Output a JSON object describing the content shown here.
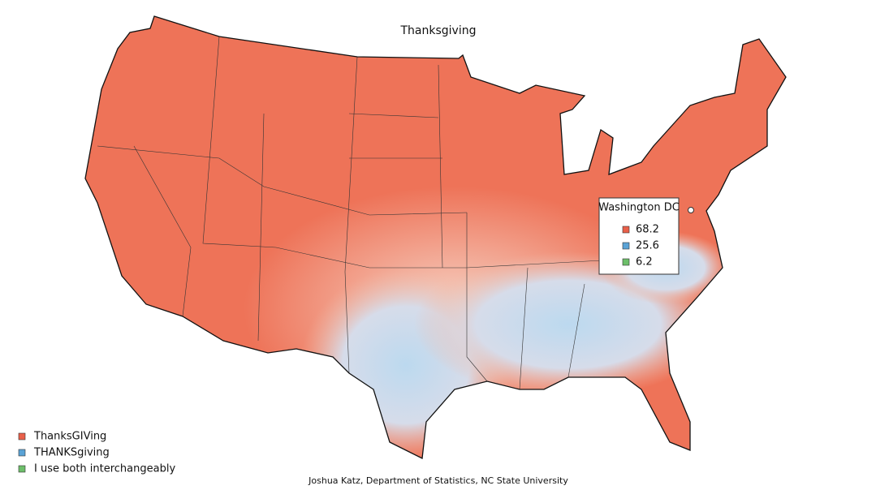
{
  "title": "Thanksgiving",
  "tooltip": {
    "location": "Washington DC",
    "values": [
      68.2,
      25.6,
      6.2
    ]
  },
  "legend": [
    {
      "label": "ThanksGIVing",
      "color": "#e9604a"
    },
    {
      "label": "THANKSgiving",
      "color": "#5aa3d6"
    },
    {
      "label": "I use both interchangeably",
      "color": "#6dbf6a"
    }
  ],
  "credit": "Joshua Katz, Department of Statistics, NC State University"
}
